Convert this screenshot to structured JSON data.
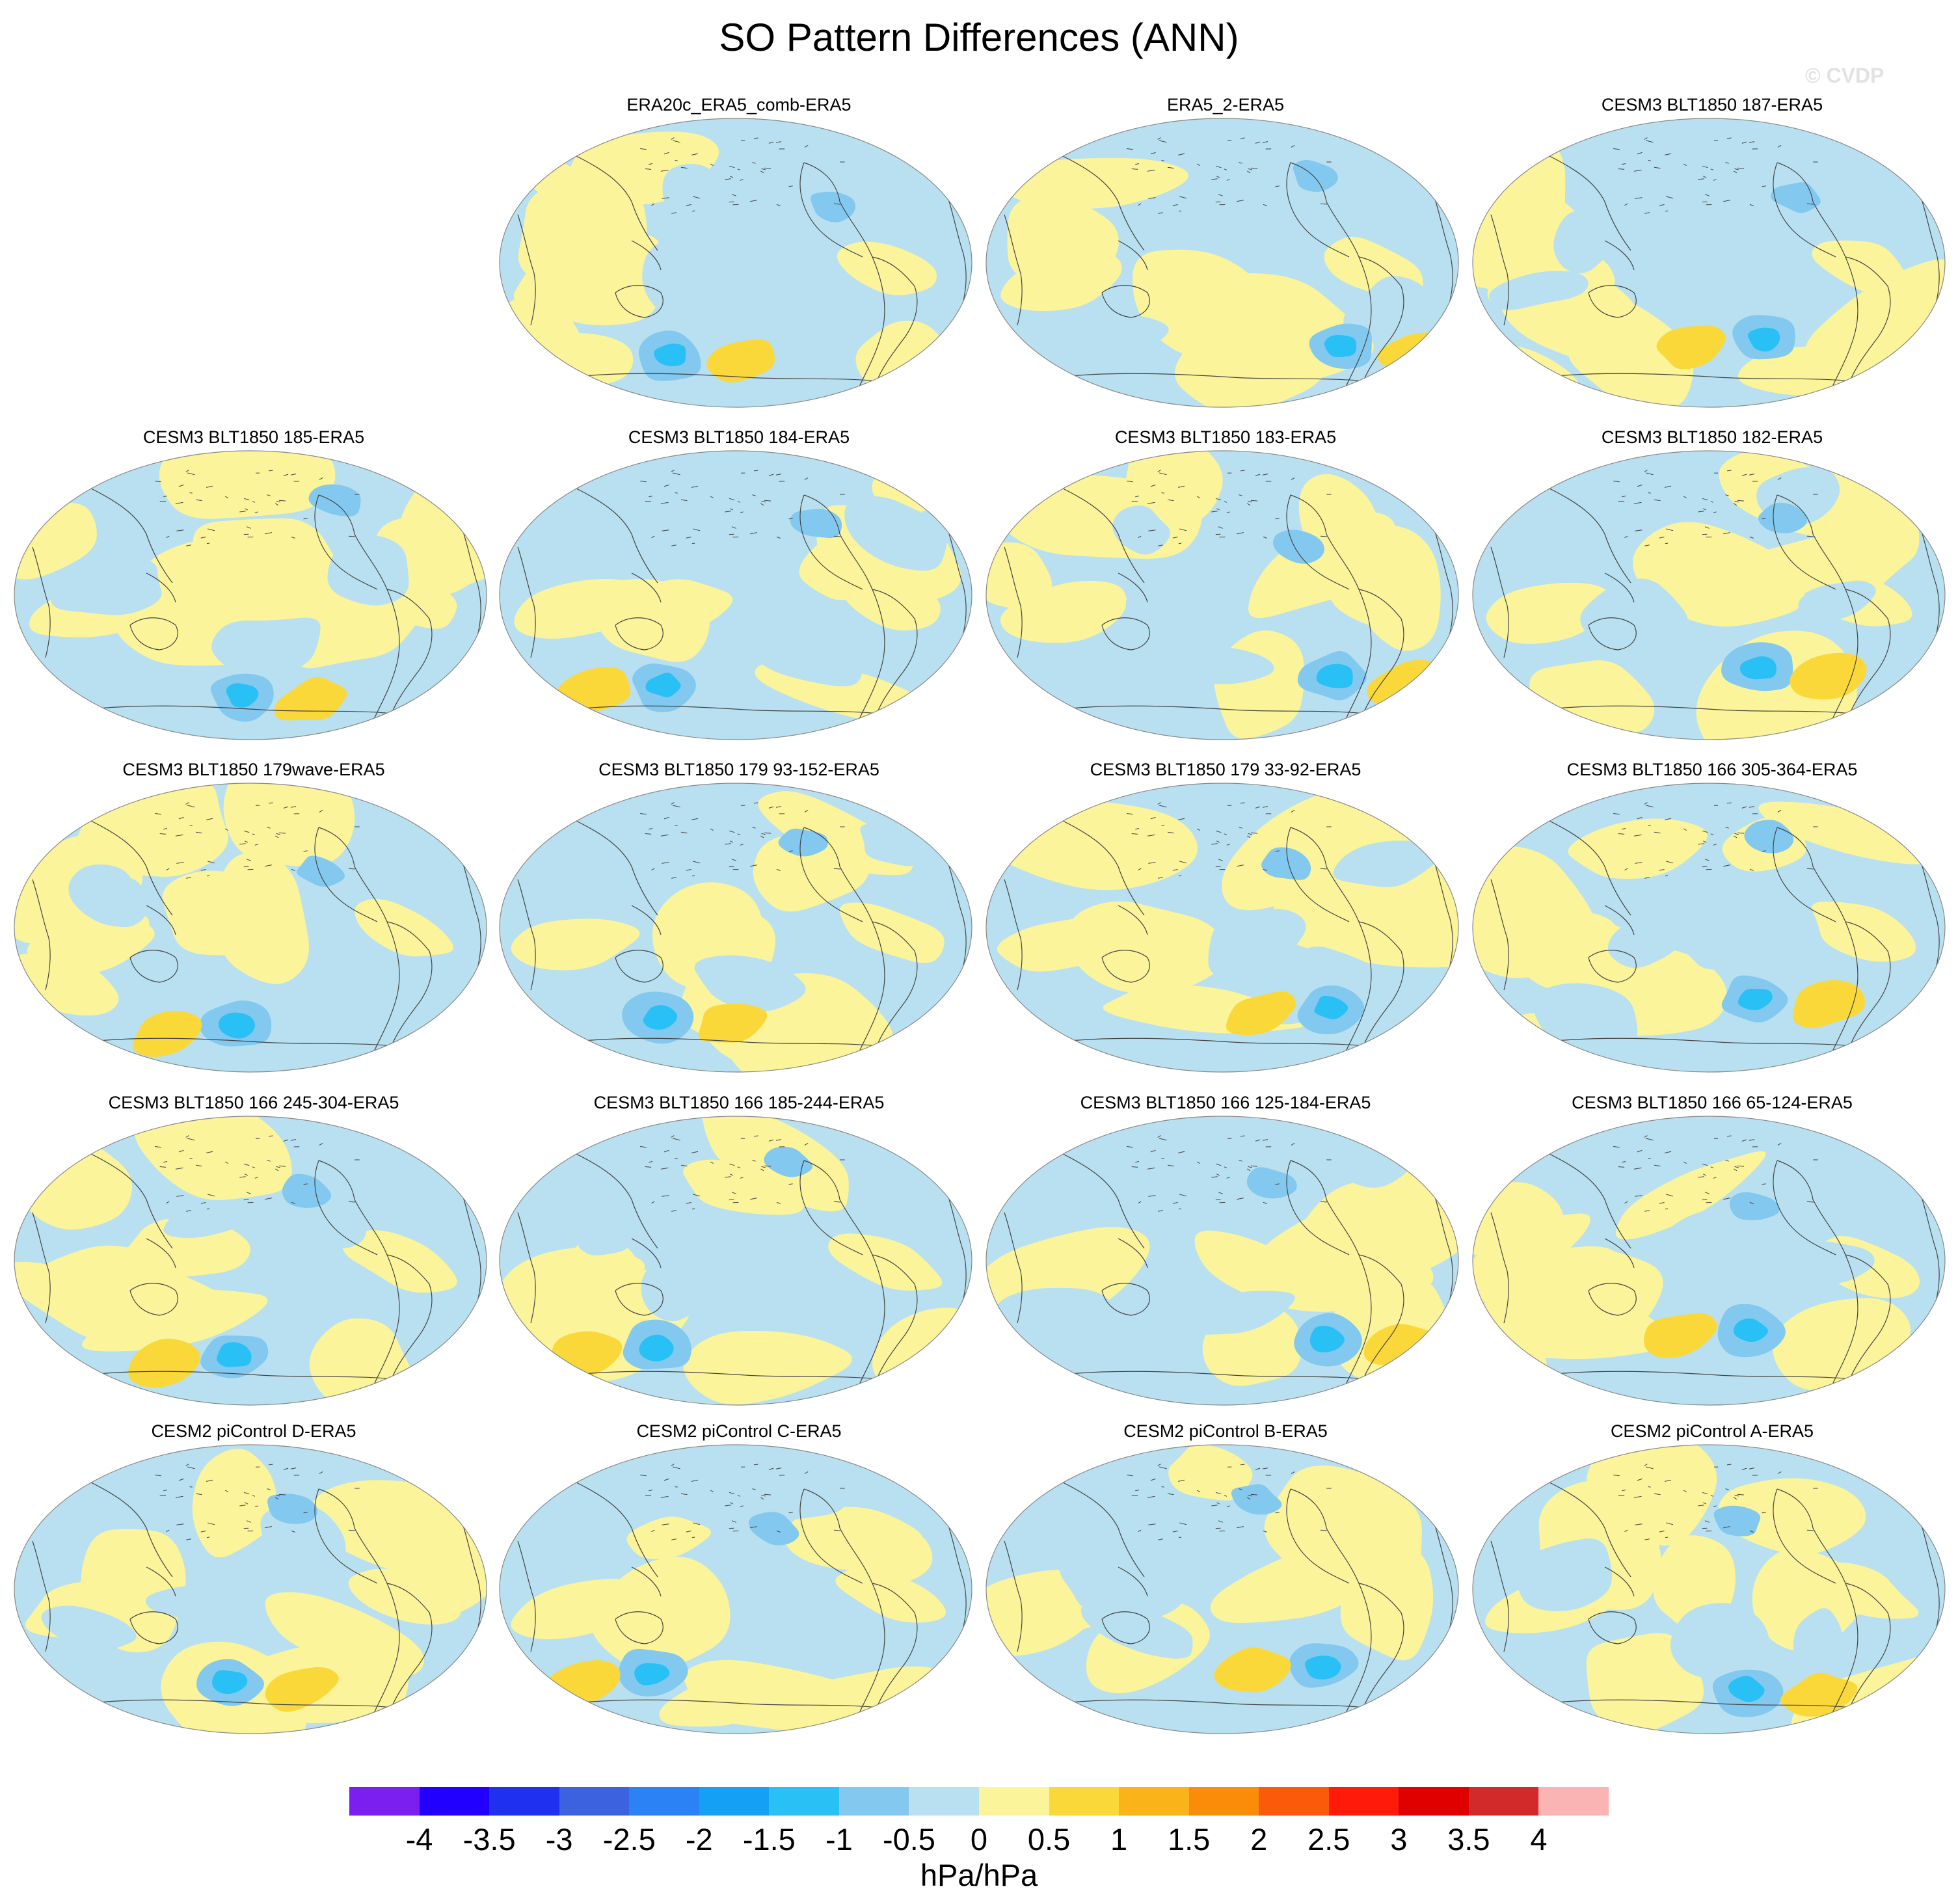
{
  "title": "SO Pattern Differences (ANN)",
  "watermark": "© CVDP",
  "units": "hPa/hPa",
  "colorbar": {
    "colors": [
      "#7a1ff0",
      "#2200ff",
      "#1f30f0",
      "#3c62e0",
      "#2a82f5",
      "#14a0f5",
      "#28c0f5",
      "#82c8ef",
      "#b8e0f0",
      "#fbf49a",
      "#fbd83a",
      "#fab419",
      "#fa8c0a",
      "#fa5a0a",
      "#ff1a0a",
      "#e00000",
      "#d22a2a",
      "#fbb4b4"
    ],
    "labels": [
      "-4",
      "-3.5",
      "-3",
      "-2.5",
      "-2",
      "-1.5",
      "-1",
      "-0.5",
      "0",
      "0.5",
      "1",
      "1.5",
      "2",
      "2.5",
      "3",
      "3.5",
      "4"
    ]
  },
  "panels": [
    {
      "row": 0,
      "col": 1,
      "title": "ERA20c_ERA5_comb-ERA5"
    },
    {
      "row": 0,
      "col": 2,
      "title": "ERA5_2-ERA5"
    },
    {
      "row": 0,
      "col": 3,
      "title": "CESM3 BLT1850 187-ERA5"
    },
    {
      "row": 1,
      "col": 0,
      "title": "CESM3 BLT1850 185-ERA5"
    },
    {
      "row": 1,
      "col": 1,
      "title": "CESM3 BLT1850 184-ERA5"
    },
    {
      "row": 1,
      "col": 2,
      "title": "CESM3 BLT1850 183-ERA5"
    },
    {
      "row": 1,
      "col": 3,
      "title": "CESM3 BLT1850 182-ERA5"
    },
    {
      "row": 2,
      "col": 0,
      "title": "CESM3 BLT1850 179wave-ERA5"
    },
    {
      "row": 2,
      "col": 1,
      "title": "CESM3 BLT1850 179 93-152-ERA5"
    },
    {
      "row": 2,
      "col": 2,
      "title": "CESM3 BLT1850 179 33-92-ERA5"
    },
    {
      "row": 2,
      "col": 3,
      "title": "CESM3 BLT1850 166 305-364-ERA5"
    },
    {
      "row": 3,
      "col": 0,
      "title": "CESM3 BLT1850 166 245-304-ERA5"
    },
    {
      "row": 3,
      "col": 1,
      "title": "CESM3 BLT1850 166 185-244-ERA5"
    },
    {
      "row": 3,
      "col": 2,
      "title": "CESM3 BLT1850 166 125-184-ERA5"
    },
    {
      "row": 3,
      "col": 3,
      "title": "CESM3 BLT1850 166 65-124-ERA5"
    },
    {
      "row": 4,
      "col": 0,
      "title": "CESM2 piControl D-ERA5"
    },
    {
      "row": 4,
      "col": 1,
      "title": "CESM2 piControl C-ERA5"
    },
    {
      "row": 4,
      "col": 2,
      "title": "CESM2 piControl B-ERA5"
    },
    {
      "row": 4,
      "col": 3,
      "title": "CESM2 piControl A-ERA5"
    }
  ]
}
